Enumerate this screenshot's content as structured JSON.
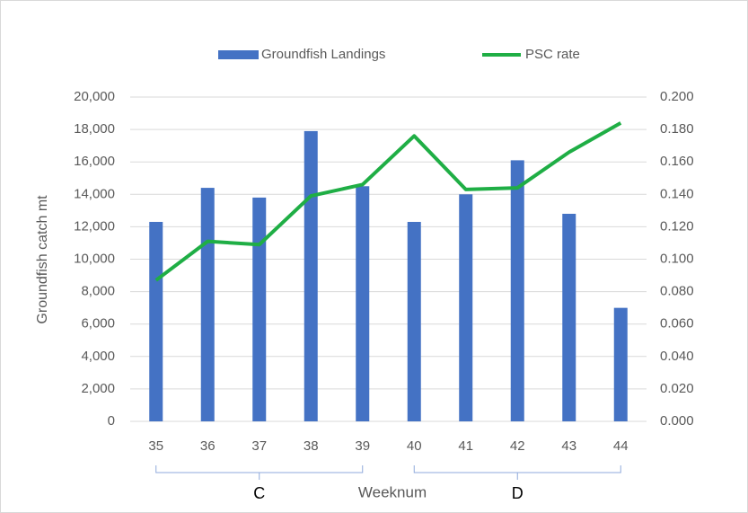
{
  "chart_data": {
    "type": "bar-line",
    "categories": [
      "35",
      "36",
      "37",
      "38",
      "39",
      "40",
      "41",
      "42",
      "43",
      "44"
    ],
    "series": [
      {
        "name": "Groundfish Landings",
        "type": "bar",
        "color": "#4472c4",
        "axis": "y",
        "values": [
          12300,
          14400,
          13800,
          17900,
          14500,
          12300,
          14000,
          16100,
          12800,
          7000
        ]
      },
      {
        "name": "PSC rate",
        "type": "line",
        "color": "#1fae45",
        "axis": "y2",
        "values": [
          0.087,
          0.111,
          0.109,
          0.139,
          0.146,
          0.176,
          0.143,
          0.144,
          0.166,
          0.184
        ]
      }
    ],
    "ylabel": "Groundfish catch mt",
    "xlabel": "Weeknum",
    "ylim": [
      0,
      20000
    ],
    "yticks": [
      0,
      {
        "value": 2000,
        "label": "2,000"
      },
      {
        "value": 4000,
        "label": "4,000"
      },
      {
        "value": 6000,
        "label": "6,000"
      },
      {
        "value": 8000,
        "label": "8,000"
      },
      {
        "value": 10000,
        "label": "10,000"
      },
      {
        "value": 12000,
        "label": "12,000"
      },
      {
        "value": 14000,
        "label": "14,000"
      },
      {
        "value": 16000,
        "label": "16,000"
      },
      {
        "value": 18000,
        "label": "18,000"
      },
      {
        "value": 20000,
        "label": "20,000"
      }
    ],
    "y2lim": [
      0,
      0.2
    ],
    "y2ticks": [
      {
        "value": 0,
        "label": "0.000"
      },
      {
        "value": 0.02,
        "label": "0.020"
      },
      {
        "value": 0.04,
        "label": "0.040"
      },
      {
        "value": 0.06,
        "label": "0.060"
      },
      {
        "value": 0.08,
        "label": "0.080"
      },
      {
        "value": 0.1,
        "label": "0.100"
      },
      {
        "value": 0.12,
        "label": "0.120"
      },
      {
        "value": 0.14,
        "label": "0.140"
      },
      {
        "value": 0.16,
        "label": "0.160"
      },
      {
        "value": 0.18,
        "label": "0.180"
      },
      {
        "value": 0.2,
        "label": "0.200"
      }
    ],
    "groups": [
      {
        "label": "C",
        "start": "35",
        "end": "39"
      },
      {
        "label": "D",
        "start": "40",
        "end": "44"
      }
    ],
    "grid": true,
    "legend": "top"
  }
}
